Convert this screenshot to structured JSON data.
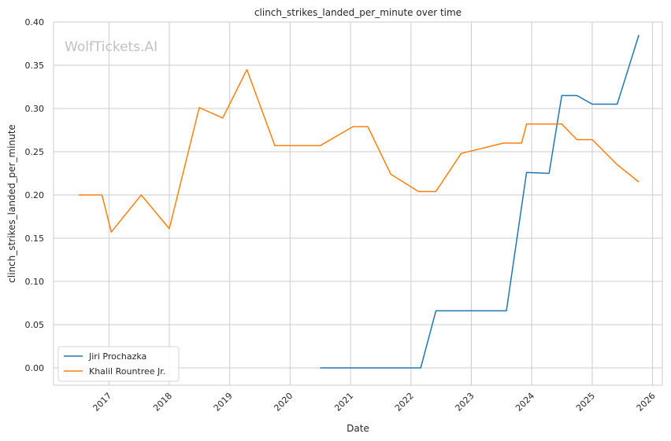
{
  "chart_data": {
    "type": "line",
    "title": "clinch_strikes_landed_per_minute over time",
    "xlabel": "Date",
    "ylabel": "clinch_strikes_landed_per_minute",
    "watermark": "WolfTickets.AI",
    "xlim": [
      "2016-02-01",
      "2026-03-01"
    ],
    "ylim": [
      -0.02,
      0.4
    ],
    "x_ticks": [
      "2017",
      "2018",
      "2019",
      "2020",
      "2021",
      "2022",
      "2023",
      "2024",
      "2025",
      "2026"
    ],
    "y_ticks": [
      0.0,
      0.05,
      0.1,
      0.15,
      0.2,
      0.25,
      0.3,
      0.35,
      0.4
    ],
    "grid": true,
    "legend_position": "bottom-left",
    "series": [
      {
        "name": "Jiri Prochazka",
        "color": "#1f77b4",
        "points": [
          [
            "2020-07-01",
            0.0
          ],
          [
            "2022-03-01",
            0.0
          ],
          [
            "2022-06-01",
            0.066
          ],
          [
            "2023-08-01",
            0.066
          ],
          [
            "2023-12-01",
            0.226
          ],
          [
            "2024-04-15",
            0.225
          ],
          [
            "2024-07-01",
            0.315
          ],
          [
            "2024-10-01",
            0.315
          ],
          [
            "2025-01-01",
            0.305
          ],
          [
            "2025-06-01",
            0.305
          ],
          [
            "2025-10-10",
            0.385
          ]
        ]
      },
      {
        "name": "Khalil Rountree Jr.",
        "color": "#ff7f0e",
        "points": [
          [
            "2016-07-01",
            0.2
          ],
          [
            "2016-11-20",
            0.2
          ],
          [
            "2017-01-15",
            0.157
          ],
          [
            "2017-07-15",
            0.2
          ],
          [
            "2018-01-01",
            0.161
          ],
          [
            "2018-07-01",
            0.301
          ],
          [
            "2018-11-20",
            0.289
          ],
          [
            "2019-04-15",
            0.345
          ],
          [
            "2019-10-01",
            0.257
          ],
          [
            "2020-07-01",
            0.257
          ],
          [
            "2021-01-15",
            0.279
          ],
          [
            "2021-04-15",
            0.279
          ],
          [
            "2021-09-01",
            0.224
          ],
          [
            "2022-02-15",
            0.204
          ],
          [
            "2022-06-01",
            0.204
          ],
          [
            "2022-11-01",
            0.248
          ],
          [
            "2023-07-15",
            0.26
          ],
          [
            "2023-11-01",
            0.26
          ],
          [
            "2023-12-01",
            0.282
          ],
          [
            "2024-07-01",
            0.282
          ],
          [
            "2024-10-01",
            0.264
          ],
          [
            "2025-01-01",
            0.264
          ],
          [
            "2025-06-01",
            0.235
          ],
          [
            "2025-10-10",
            0.215
          ]
        ]
      }
    ]
  }
}
